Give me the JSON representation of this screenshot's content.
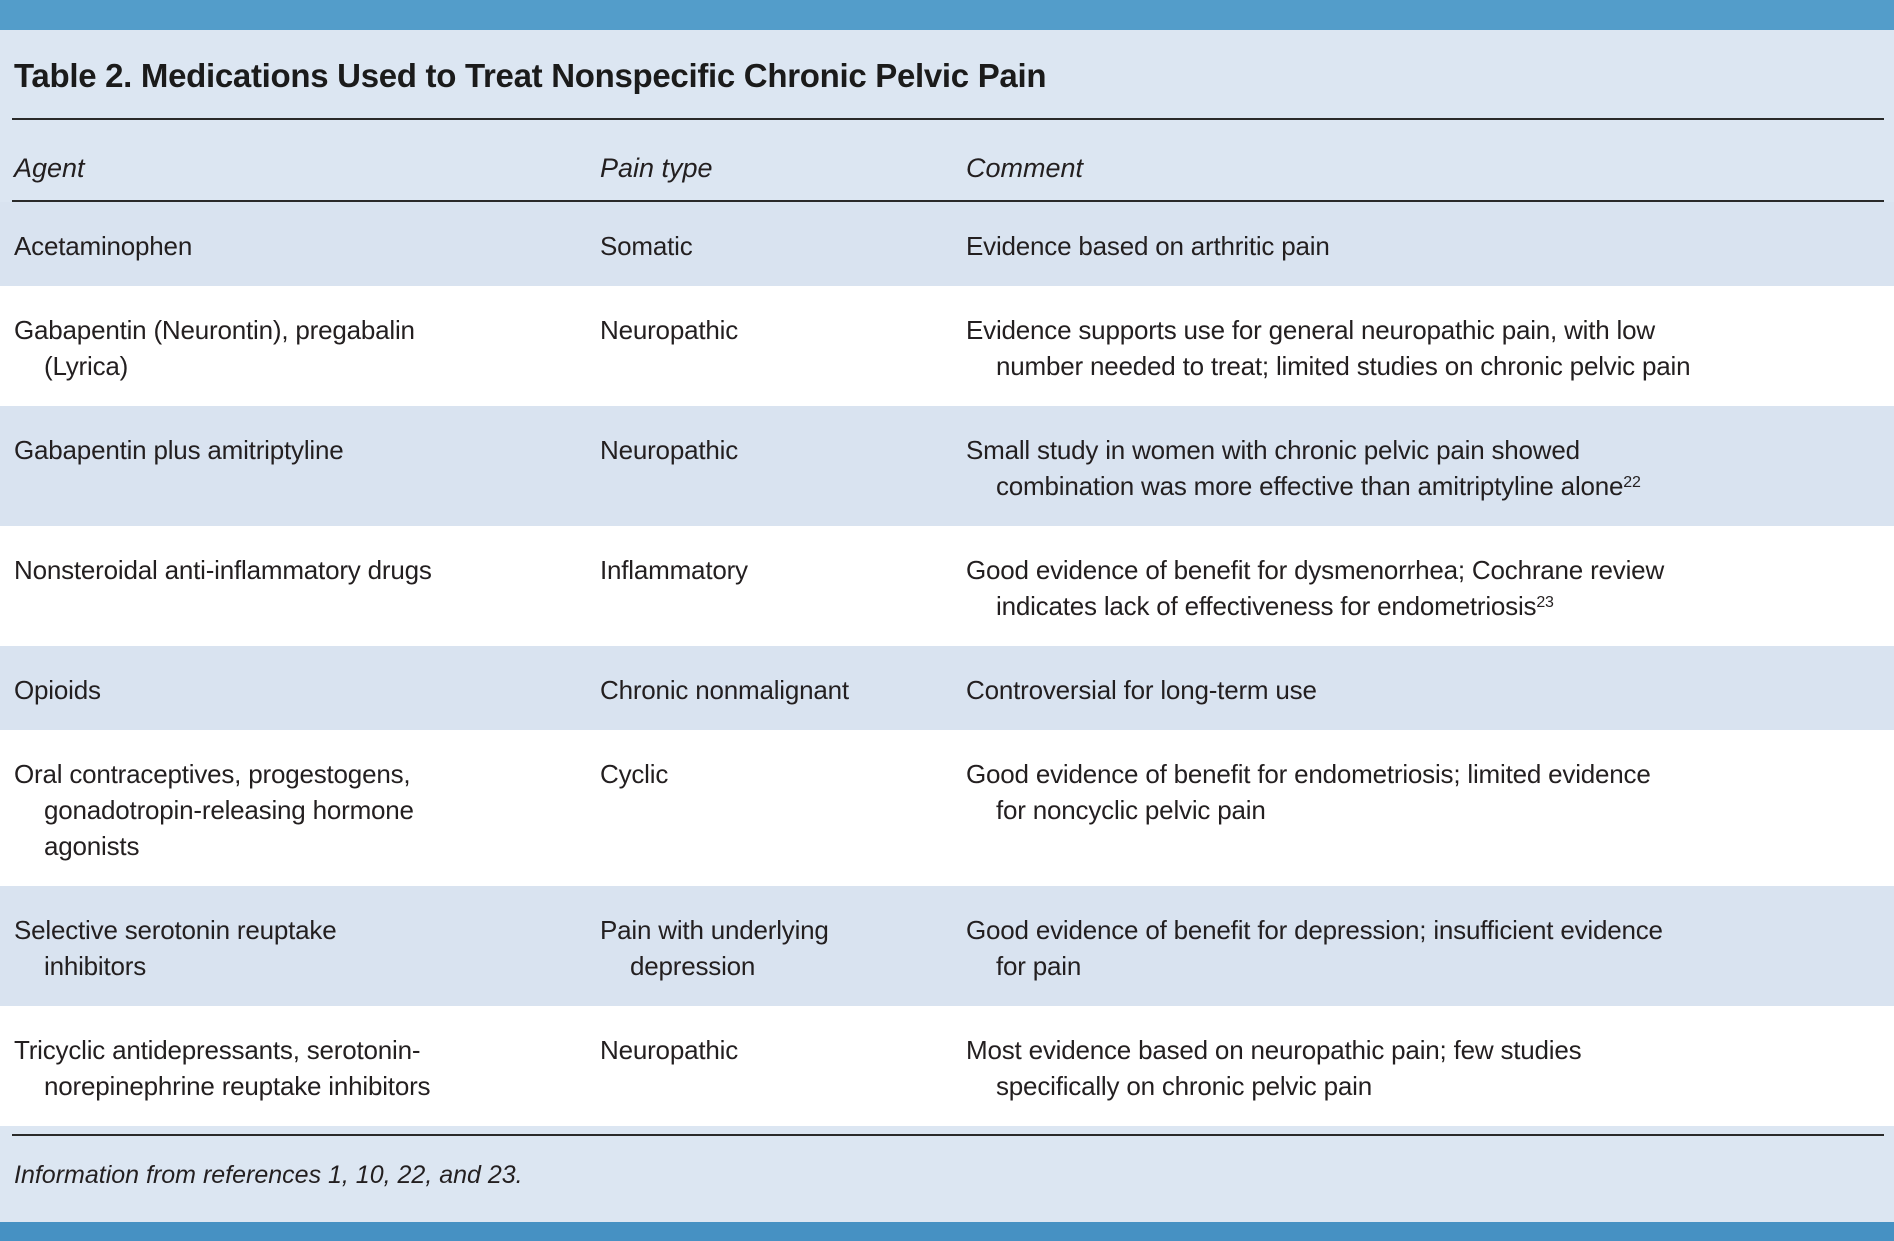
{
  "table": {
    "title": "Table 2. Medications Used to Treat Nonspecific Chronic Pelvic Pain",
    "columns": {
      "agent": "Agent",
      "pain_type": "Pain type",
      "comment": "Comment"
    },
    "rows": [
      {
        "agent_lines": [
          "Acetaminophen"
        ],
        "pain_lines": [
          "Somatic"
        ],
        "comment_lines": [
          "Evidence based on arthritic pain"
        ]
      },
      {
        "agent_lines": [
          "Gabapentin (Neurontin), pregabalin",
          "(Lyrica)"
        ],
        "pain_lines": [
          "Neuropathic"
        ],
        "comment_lines": [
          "Evidence supports use for general neuropathic pain, with low",
          "number needed to treat; limited studies on chronic pelvic pain"
        ]
      },
      {
        "agent_lines": [
          "Gabapentin plus amitriptyline"
        ],
        "pain_lines": [
          "Neuropathic"
        ],
        "comment_lines": [
          "Small study in women with chronic pelvic pain showed",
          "combination was more effective than amitriptyline alone"
        ],
        "comment_sup": "22"
      },
      {
        "agent_lines": [
          "Nonsteroidal anti-inflammatory drugs"
        ],
        "pain_lines": [
          "Inflammatory"
        ],
        "comment_lines": [
          "Good evidence of benefit for dysmenorrhea; Cochrane review",
          "indicates lack of effectiveness for endometriosis"
        ],
        "comment_sup": "23"
      },
      {
        "agent_lines": [
          "Opioids"
        ],
        "pain_lines": [
          "Chronic nonmalignant"
        ],
        "comment_lines": [
          "Controversial for long-term use"
        ]
      },
      {
        "agent_lines": [
          "Oral contraceptives, progestogens,",
          "gonadotropin-releasing hormone",
          "agonists"
        ],
        "pain_lines": [
          "Cyclic"
        ],
        "comment_lines": [
          "Good evidence of benefit for endometriosis; limited evidence",
          "for noncyclic pelvic pain"
        ]
      },
      {
        "agent_lines": [
          "Selective serotonin reuptake",
          "inhibitors"
        ],
        "pain_lines": [
          "Pain with underlying",
          "depression"
        ],
        "comment_lines": [
          "Good evidence of benefit for depression; insufficient evidence",
          "for pain"
        ]
      },
      {
        "agent_lines": [
          "Tricyclic antidepressants, serotonin-",
          "norepinephrine reuptake inhibitors"
        ],
        "pain_lines": [
          "Neuropathic"
        ],
        "comment_lines": [
          "Most evidence based on neuropathic pain; few studies",
          "specifically on chronic pelvic pain"
        ]
      }
    ],
    "footnote": "Information from references 1, 10, 22, and 23."
  },
  "colors": {
    "top_accent_bar": "#539dca",
    "bottom_accent_bar": "#4691c3",
    "page_background": "#dce6f2",
    "row_stripe_blue": "#d9e3f0",
    "row_white": "#ffffff",
    "text": "#231f20",
    "rule": "#2a2a2a"
  }
}
